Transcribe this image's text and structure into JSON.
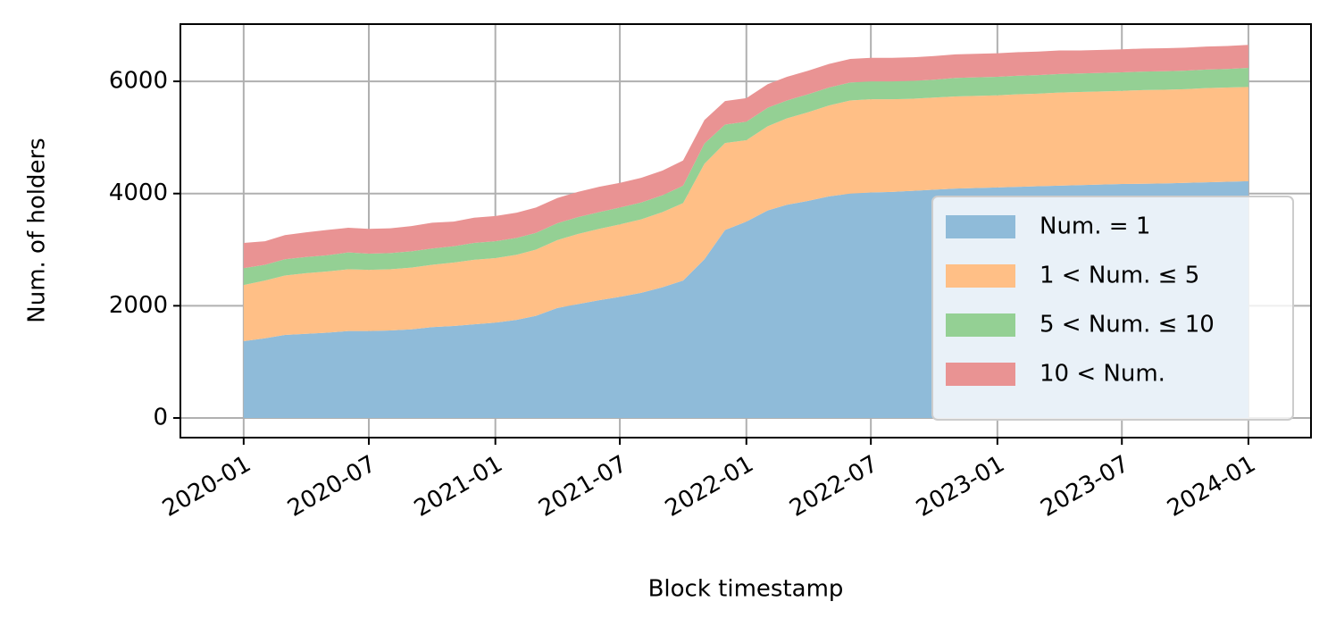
{
  "chart_data": {
    "type": "stacked_area",
    "xlabel": "Block timestamp",
    "ylabel": "Num. of holders",
    "x": [
      "2020-01",
      "2020-02",
      "2020-03",
      "2020-04",
      "2020-05",
      "2020-06",
      "2020-07",
      "2020-08",
      "2020-09",
      "2020-10",
      "2020-11",
      "2020-12",
      "2021-01",
      "2021-02",
      "2021-03",
      "2021-04",
      "2021-05",
      "2021-06",
      "2021-07",
      "2021-08",
      "2021-09",
      "2021-10",
      "2021-11",
      "2021-12",
      "2022-01",
      "2022-02",
      "2022-03",
      "2022-04",
      "2022-05",
      "2022-06",
      "2022-07",
      "2022-08",
      "2022-09",
      "2022-10",
      "2022-11",
      "2022-12",
      "2023-01",
      "2023-02",
      "2023-03",
      "2023-04",
      "2023-05",
      "2023-06",
      "2023-07",
      "2023-08",
      "2023-09",
      "2023-10",
      "2023-11",
      "2023-12",
      "2024-01"
    ],
    "series": [
      {
        "name": "Num. = 1",
        "color": "#8fbbd9",
        "values": [
          1370,
          1420,
          1480,
          1500,
          1520,
          1550,
          1550,
          1560,
          1580,
          1620,
          1640,
          1670,
          1700,
          1750,
          1820,
          1960,
          2030,
          2100,
          2160,
          2230,
          2330,
          2450,
          2830,
          3350,
          3500,
          3700,
          3800,
          3870,
          3950,
          4000,
          4020,
          4030,
          4050,
          4070,
          4090,
          4100,
          4110,
          4120,
          4130,
          4140,
          4150,
          4160,
          4170,
          4175,
          4180,
          4190,
          4200,
          4210,
          4220
        ]
      },
      {
        "name": "1 < Num. ≤ 5",
        "color": "#ffbf86",
        "values": [
          1000,
          1030,
          1060,
          1080,
          1090,
          1100,
          1090,
          1090,
          1100,
          1110,
          1130,
          1150,
          1150,
          1160,
          1180,
          1210,
          1250,
          1270,
          1290,
          1310,
          1340,
          1380,
          1700,
          1550,
          1450,
          1500,
          1540,
          1580,
          1620,
          1660,
          1660,
          1650,
          1640,
          1640,
          1640,
          1640,
          1640,
          1650,
          1650,
          1660,
          1660,
          1660,
          1660,
          1670,
          1670,
          1670,
          1680,
          1680,
          1680
        ]
      },
      {
        "name": "5 < Num. ≤ 10",
        "color": "#94d094",
        "values": [
          300,
          280,
          290,
          290,
          290,
          300,
          290,
          290,
          290,
          290,
          290,
          300,
          300,
          300,
          300,
          300,
          300,
          300,
          300,
          300,
          300,
          310,
          360,
          330,
          330,
          330,
          320,
          320,
          320,
          320,
          320,
          320,
          320,
          320,
          330,
          330,
          330,
          330,
          330,
          330,
          330,
          330,
          330,
          330,
          330,
          330,
          330,
          330,
          340
        ]
      },
      {
        "name": "10 < Num.",
        "color": "#e99393",
        "values": [
          450,
          420,
          430,
          440,
          450,
          440,
          440,
          440,
          450,
          460,
          440,
          450,
          450,
          450,
          450,
          450,
          450,
          450,
          440,
          440,
          440,
          450,
          420,
          420,
          420,
          420,
          420,
          420,
          420,
          420,
          420,
          420,
          420,
          420,
          420,
          420,
          420,
          420,
          420,
          420,
          410,
          410,
          410,
          410,
          410,
          410,
          410,
          410,
          410
        ]
      }
    ],
    "xlim": [
      "2019-10",
      "2024-04"
    ],
    "xticks": [
      "2020-01",
      "2020-07",
      "2021-01",
      "2021-07",
      "2022-01",
      "2022-07",
      "2023-01",
      "2023-07",
      "2024-01"
    ],
    "ylim": [
      -350,
      7020
    ],
    "yticks": [
      0,
      2000,
      4000,
      6000
    ],
    "grid": true,
    "legend": "lower right"
  }
}
